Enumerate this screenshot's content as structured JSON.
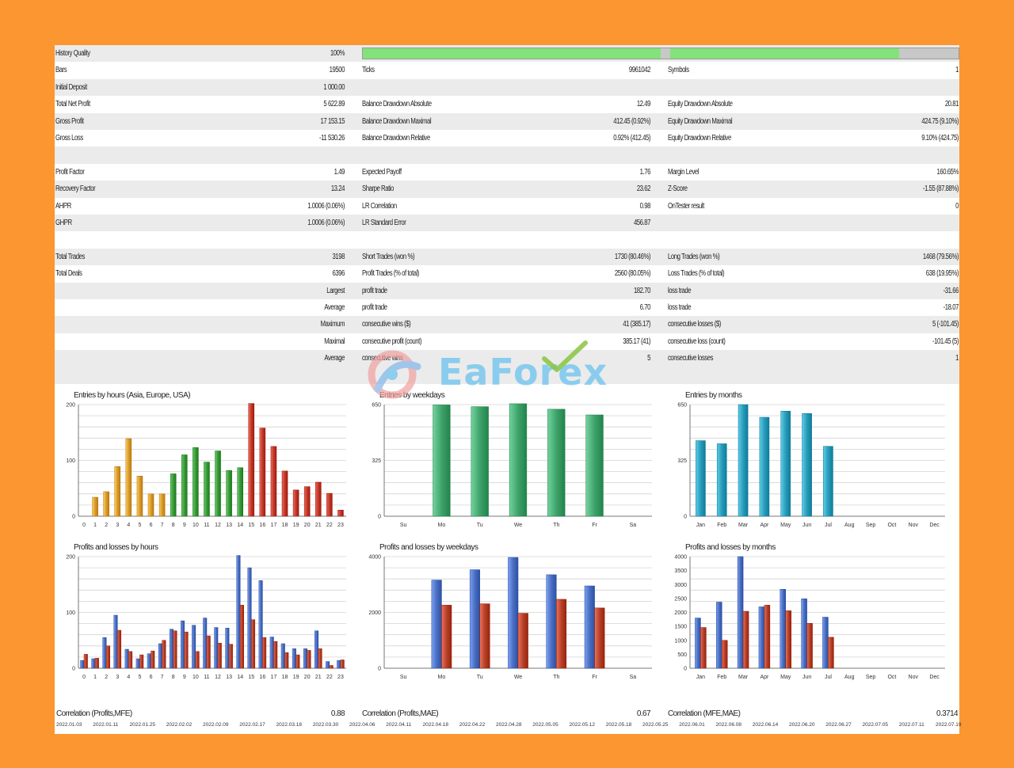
{
  "header": {
    "history_quality": {
      "label": "History Quality",
      "value": "100%",
      "fill_1": 0.5,
      "fill_2": 0.9
    },
    "bars": {
      "label": "Bars",
      "value": "19500"
    },
    "ticks": {
      "label": "Ticks",
      "value": "9961042"
    },
    "symbols": {
      "label": "Symbols",
      "value": "1"
    }
  },
  "stats_rows": [
    {
      "cells": [
        {
          "l": "History Quality",
          "v": "100%"
        },
        {},
        {}
      ]
    },
    {
      "cells": [
        {
          "l": "Bars",
          "v": "19500"
        },
        {
          "l": "Ticks",
          "v": "9961042"
        },
        {
          "l": "Symbols",
          "v": "1"
        }
      ]
    },
    {
      "cells": [
        {
          "l": "Initial Deposit",
          "v": "1 000.00"
        },
        {},
        {}
      ]
    },
    {
      "cells": [
        {
          "l": "Total Net Profit",
          "v": "5 622.89"
        },
        {
          "l": "Balance Drawdown Absolute",
          "v": "12.49"
        },
        {
          "l": "Equity Drawdown Absolute",
          "v": "20.81"
        }
      ]
    },
    {
      "cells": [
        {
          "l": "Gross Profit",
          "v": "17 153.15"
        },
        {
          "l": "Balance Drawdown Maximal",
          "v": "412.45 (0.92%)"
        },
        {
          "l": "Equity Drawdown Maximal",
          "v": "424.75 (9.10%)"
        }
      ]
    },
    {
      "cells": [
        {
          "l": "Gross Loss",
          "v": "-11 530.26"
        },
        {
          "l": "Balance Drawdown Relative",
          "v": "0.92% (412.45)"
        },
        {
          "l": "Equity Drawdown Relative",
          "v": "9.10% (424.75)"
        }
      ]
    },
    {
      "cells": [
        {},
        {},
        {}
      ]
    },
    {
      "cells": [
        {
          "l": "Profit Factor",
          "v": "1.49"
        },
        {
          "l": "Expected Payoff",
          "v": "1.76"
        },
        {
          "l": "Margin Level",
          "v": "160.65%"
        }
      ]
    },
    {
      "cells": [
        {
          "l": "Recovery Factor",
          "v": "13.24"
        },
        {
          "l": "Sharpe Ratio",
          "v": "23.62"
        },
        {
          "l": "Z-Score",
          "v": "-1.55 (87.88%)"
        }
      ]
    },
    {
      "cells": [
        {
          "l": "AHPR",
          "v": "1.0006 (0.06%)"
        },
        {
          "l": "LR Correlation",
          "v": "0.98"
        },
        {
          "l": "OnTester result",
          "v": "0"
        }
      ]
    },
    {
      "cells": [
        {
          "l": "GHPR",
          "v": "1.0006 (0.06%)"
        },
        {
          "l": "LR Standard Error",
          "v": "456.87"
        },
        {}
      ]
    },
    {
      "cells": [
        {},
        {},
        {}
      ]
    },
    {
      "cells": [
        {
          "l": "Total Trades",
          "v": "3198"
        },
        {
          "l": "Short Trades (won %)",
          "v": "1730 (80.46%)"
        },
        {
          "l": "Long Trades (won %)",
          "v": "1468 (79.56%)"
        }
      ]
    },
    {
      "cells": [
        {
          "l": "Total Deals",
          "v": "6396"
        },
        {
          "l": "Profit Trades (% of total)",
          "v": "2560 (80.05%)"
        },
        {
          "l": "Loss Trades (% of total)",
          "v": "638 (19.95%)"
        }
      ]
    },
    {
      "cells": [
        {
          "l": "Largest",
          "v": "",
          "right": true
        },
        {
          "l": "profit trade",
          "v": "182.70"
        },
        {
          "l": "loss trade",
          "v": "-31.66"
        }
      ]
    },
    {
      "cells": [
        {
          "l": "Average",
          "v": "",
          "right": true
        },
        {
          "l": "profit trade",
          "v": "6.70"
        },
        {
          "l": "loss trade",
          "v": "-18.07"
        }
      ]
    },
    {
      "cells": [
        {
          "l": "Maximum",
          "v": "",
          "right": true
        },
        {
          "l": "consecutive wins ($)",
          "v": "41 (385.17)"
        },
        {
          "l": "consecutive losses ($)",
          "v": "5 (-101.45)"
        }
      ]
    },
    {
      "cells": [
        {
          "l": "Maximal",
          "v": "",
          "right": true
        },
        {
          "l": "consecutive profit (count)",
          "v": "385.17 (41)"
        },
        {
          "l": "consecutive loss (count)",
          "v": "-101.45 (5)"
        }
      ]
    },
    {
      "cells": [
        {
          "l": "Average",
          "v": "",
          "right": true
        },
        {
          "l": "consecutive wins",
          "v": "5"
        },
        {
          "l": "consecutive losses",
          "v": "1"
        }
      ]
    }
  ],
  "watermark": {
    "text": "EaForex",
    "accent": "#8ac43f",
    "text_color": "#66c1f0"
  },
  "colors": {
    "green_bar": "#84e27a",
    "gray_bar": "#c8c8c8",
    "orange": "#d99a2b",
    "green": "#3a9a3a",
    "red": "#c0392b",
    "blue": "#4a6fc2",
    "brown_red": "#b8412a",
    "teal_green": "#3fa26a",
    "teal": "#2a9bb8"
  },
  "chart_data": [
    {
      "type": "bar",
      "title": "Entries by hours (Asia, Europe, USA)",
      "categories": [
        "0",
        "1",
        "2",
        "3",
        "4",
        "5",
        "6",
        "7",
        "8",
        "9",
        "10",
        "11",
        "12",
        "13",
        "14",
        "15",
        "16",
        "17",
        "18",
        "19",
        "20",
        "21",
        "22",
        "23"
      ],
      "values": [
        0,
        34,
        44,
        89,
        139,
        72,
        40,
        40,
        76,
        110,
        123,
        97,
        117,
        82,
        87,
        202,
        158,
        125,
        81,
        47,
        53,
        61,
        41,
        11
      ],
      "ylim": [
        0,
        200
      ],
      "yticks": [
        0,
        100,
        200
      ],
      "ytick_labels": [
        "0",
        "100",
        "200"
      ],
      "segments": [
        {
          "from": 0,
          "to": 7,
          "color": "orange"
        },
        {
          "from": 8,
          "to": 14,
          "color": "green"
        },
        {
          "from": 15,
          "to": 23,
          "color": "red"
        }
      ]
    },
    {
      "type": "bar",
      "title": "Entries by weekdays",
      "categories": [
        "Su",
        "Mo",
        "Tu",
        "We",
        "Th",
        "Fr",
        "Sa"
      ],
      "values": [
        0,
        648,
        638,
        655,
        623,
        590,
        0
      ],
      "ylim": [
        0,
        650
      ],
      "yticks": [
        0,
        325,
        650
      ],
      "ytick_labels": [
        "0",
        "325",
        "650"
      ],
      "color": "teal_green"
    },
    {
      "type": "bar",
      "title": "Entries by months",
      "categories": [
        "Jan",
        "Feb",
        "Mar",
        "Apr",
        "May",
        "Jun",
        "Jul",
        "Aug",
        "Sep",
        "Oct",
        "Nov",
        "Dec"
      ],
      "values": [
        440,
        422,
        650,
        576,
        612,
        598,
        407,
        0,
        0,
        0,
        0,
        0
      ],
      "ylim": [
        0,
        650
      ],
      "yticks": [
        0,
        325,
        650
      ],
      "ytick_labels": [
        "0",
        "325",
        "650"
      ],
      "color": "teal"
    },
    {
      "type": "bar",
      "title": "Profits and losses by hours",
      "categories": [
        "0",
        "1",
        "2",
        "3",
        "4",
        "5",
        "6",
        "7",
        "8",
        "9",
        "10",
        "11",
        "12",
        "13",
        "14",
        "15",
        "16",
        "17",
        "18",
        "19",
        "20",
        "21",
        "22",
        "23"
      ],
      "series": [
        {
          "color": "blue",
          "values": [
            14,
            17,
            55,
            95,
            34,
            17,
            26,
            44,
            70,
            85,
            77,
            90,
            73,
            72,
            202,
            180,
            157,
            56,
            44,
            35,
            35,
            67,
            12,
            14
          ]
        },
        {
          "color": "brown_red",
          "values": [
            25,
            18,
            40,
            68,
            30,
            24,
            31,
            50,
            67,
            65,
            30,
            58,
            45,
            43,
            113,
            87,
            55,
            48,
            28,
            24,
            32,
            35,
            5,
            15
          ]
        }
      ],
      "ylim": [
        0,
        200
      ],
      "yticks": [
        0,
        100,
        200
      ],
      "ytick_labels": [
        "0",
        "100",
        "200"
      ]
    },
    {
      "type": "bar",
      "title": "Profits and losses by weekdays",
      "categories": [
        "Su",
        "Mo",
        "Tu",
        "We",
        "Th",
        "Fr",
        "Sa"
      ],
      "series": [
        {
          "color": "blue",
          "values": [
            0,
            3160,
            3530,
            3970,
            3350,
            2950,
            0
          ]
        },
        {
          "color": "brown_red",
          "values": [
            0,
            2260,
            2310,
            1970,
            2470,
            2160,
            0
          ]
        }
      ],
      "ylim": [
        0,
        4000
      ],
      "yticks": [
        0,
        2000,
        4000
      ],
      "ytick_labels": [
        "0",
        "2000",
        "4000"
      ]
    },
    {
      "type": "bar",
      "title": "Profits and losses by months",
      "categories": [
        "Jan",
        "Feb",
        "Mar",
        "Apr",
        "May",
        "Jun",
        "Jul",
        "Aug",
        "Sep",
        "Oct",
        "Nov",
        "Dec"
      ],
      "series": [
        {
          "color": "blue",
          "values": [
            1800,
            2370,
            4000,
            2200,
            2830,
            2490,
            1830,
            0,
            0,
            0,
            0,
            0
          ]
        },
        {
          "color": "brown_red",
          "values": [
            1460,
            1000,
            2040,
            2260,
            2060,
            1610,
            1110,
            0,
            0,
            0,
            0,
            0
          ]
        }
      ],
      "ylim": [
        0,
        4000
      ],
      "yticks": [
        0,
        500,
        1000,
        1500,
        2000,
        2500,
        3000,
        3500,
        4000
      ],
      "ytick_labels": [
        "0",
        "500",
        "1000",
        "1500",
        "2000",
        "2500",
        "3000",
        "3500",
        "4000"
      ]
    }
  ],
  "footer": {
    "corr_mfe": {
      "label": "Correlation (Profits,MFE)",
      "value": "0.88"
    },
    "corr_mae": {
      "label": "Correlation (Profits,MAE)",
      "value": "0.67"
    },
    "corr_mfe_mae": {
      "label": "Correlation (MFE,MAE)",
      "value": "0.3714"
    }
  },
  "date_axis": [
    "2022.01.03",
    "2022.01.11",
    "2022.01.25",
    "2022.02.02",
    "2022.02.09",
    "2022.02.17",
    "2022.03.18",
    "2022.03.30",
    "2022.04.06",
    "2022.04.11",
    "2022.04.18",
    "2022.04.22",
    "2022.04.28",
    "2022.05.05",
    "2022.05.12",
    "2022.05.18",
    "2022.05.25",
    "2022.06.01",
    "2022.06.08",
    "2022.06.14",
    "2022.06.20",
    "2022.06.27",
    "2022.07.05",
    "2022.07.11",
    "2022.07.19"
  ]
}
